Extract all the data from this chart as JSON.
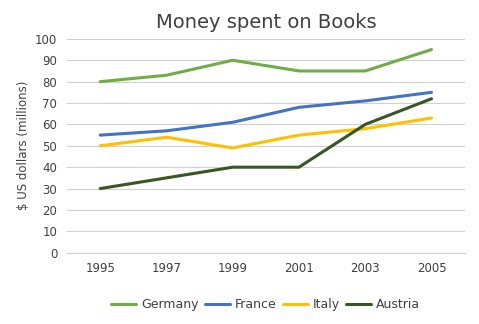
{
  "title": "Money spent on Books",
  "ylabel": "$ US dollars (millions)",
  "years": [
    1995,
    1997,
    1999,
    2001,
    2003,
    2005
  ],
  "series": [
    {
      "label": "Germany",
      "color": "#70ad47",
      "values": [
        80,
        83,
        90,
        85,
        85,
        95
      ]
    },
    {
      "label": "France",
      "color": "#4472c4",
      "values": [
        55,
        57,
        61,
        68,
        71,
        75
      ]
    },
    {
      "label": "Italy",
      "color": "#ffc000",
      "values": [
        50,
        54,
        49,
        55,
        58,
        63
      ]
    },
    {
      "label": "Austria",
      "color": "#375623",
      "values": [
        30,
        35,
        40,
        40,
        60,
        72
      ]
    }
  ],
  "ylim": [
    0,
    100
  ],
  "yticks": [
    0,
    10,
    20,
    30,
    40,
    50,
    60,
    70,
    80,
    90,
    100
  ],
  "xticks": [
    1995,
    1997,
    1999,
    2001,
    2003,
    2005
  ],
  "title_fontsize": 14,
  "axis_label_fontsize": 8.5,
  "tick_fontsize": 8.5,
  "legend_fontsize": 9,
  "linewidth": 2.2,
  "background_color": "#ffffff",
  "grid_color": "#d0d0d0"
}
